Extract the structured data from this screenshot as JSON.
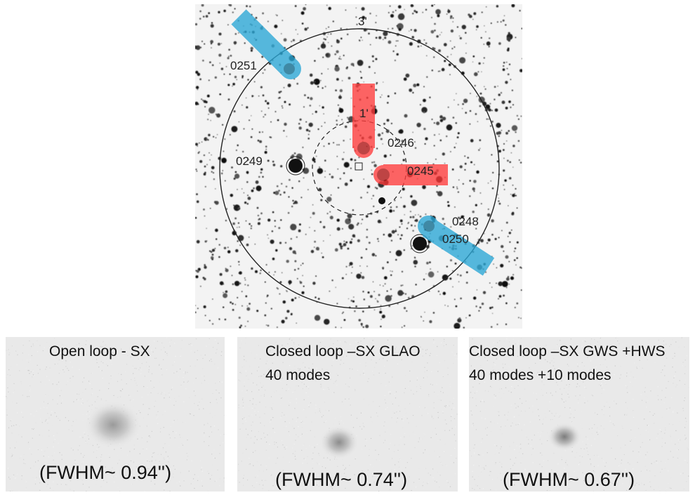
{
  "field": {
    "scale_outer": "3'",
    "scale_inner": "1'",
    "star_labels": [
      "0251",
      "0246",
      "0249",
      "0245",
      "0248",
      "0250"
    ],
    "colors": {
      "ngs": "#ff3b3b",
      "lgs": "#2aa7d6"
    }
  },
  "panels": [
    {
      "line1": "Open loop - SX",
      "line2": "",
      "fwhm": "(FWHM~ 0.94'')"
    },
    {
      "line1": "Closed loop –SX GLAO",
      "line2": "40 modes",
      "fwhm": "(FWHM~ 0.74'')"
    },
    {
      "line1": "Closed loop –SX GWS +HWS",
      "line2": "40 modes  +10 modes",
      "fwhm": "(FWHM~ 0.67'')"
    }
  ]
}
